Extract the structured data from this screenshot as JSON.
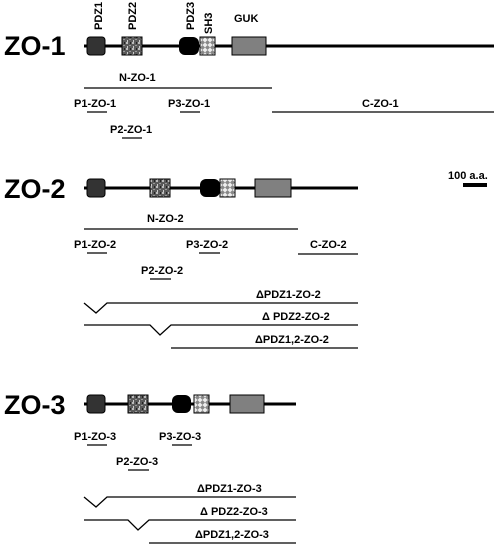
{
  "proteins": [
    {
      "name": "ZO-1"
    },
    {
      "name": "ZO-2"
    },
    {
      "name": "ZO-3"
    }
  ],
  "domain_labels": [
    "PDZ1",
    "PDZ2",
    "PDZ3",
    "SH3",
    "GUK"
  ],
  "scale_bar": {
    "label": "100 a.a.",
    "value_aa": 100
  },
  "zo1": {
    "constructs": [
      "N-ZO-1",
      "P1-ZO-1",
      "P3-ZO-1",
      "P2-ZO-1",
      "C-ZO-1"
    ]
  },
  "zo2": {
    "constructs": [
      "N-ZO-2",
      "P1-ZO-2",
      "P3-ZO-2",
      "C-ZO-2",
      "P2-ZO-2"
    ],
    "deletions": [
      "ΔPDZ1-ZO-2",
      "Δ PDZ2-ZO-2",
      "ΔPDZ1,2-ZO-2"
    ]
  },
  "zo3": {
    "constructs": [
      "P1-ZO-3",
      "P3-ZO-3",
      "P2-ZO-3"
    ],
    "deletions": [
      "ΔPDZ1-ZO-3",
      "Δ PDZ2-ZO-3",
      "ΔPDZ1,2-ZO-3"
    ]
  },
  "colors": {
    "pdz1": "#3a3a3a",
    "pdz2": "#6b6b6b",
    "pdz3": "#000000",
    "sh3": "#dddddd",
    "guk": "#808080"
  }
}
